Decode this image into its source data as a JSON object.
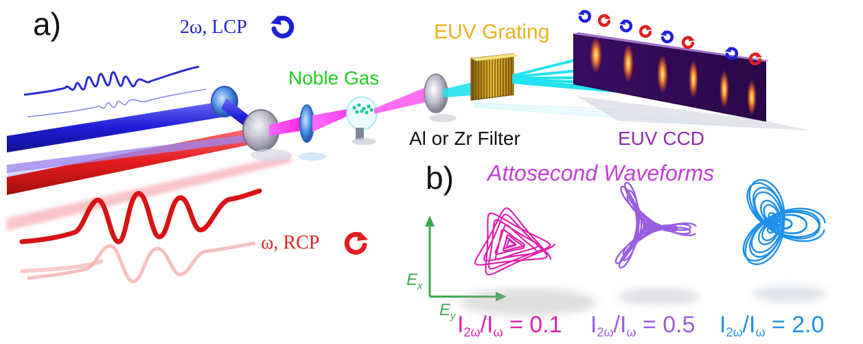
{
  "panel_a": {
    "label": "a)",
    "blue_beam_label": "2ω, LCP",
    "red_beam_label": "ω, RCP",
    "gas_label": "Noble Gas",
    "grating_label": "EUV Grating",
    "filter_label": "Al or Zr Filter",
    "ccd_label": "EUV CCD",
    "handedness_icons": [
      "blue",
      "red",
      "blue",
      "red",
      "blue",
      "red",
      "blue",
      "red"
    ]
  },
  "panel_b": {
    "label": "b)",
    "title": "Attosecond Waveforms",
    "axis_x": "E",
    "axis_x_sub": "x",
    "axis_y": "E",
    "axis_y_sub": "y",
    "waveforms": [
      {
        "ratio_num": "I",
        "ratio_num_sub": "2ω",
        "ratio_den": "/I",
        "ratio_den_sub": "ω",
        "ratio_value": " = 0.1",
        "color": "#e020b0",
        "ratio": 0.1
      },
      {
        "ratio_num": "I",
        "ratio_num_sub": "2ω",
        "ratio_den": "/I",
        "ratio_den_sub": "ω",
        "ratio_value": " = 0.5",
        "color": "#9a5de0",
        "ratio": 0.5
      },
      {
        "ratio_num": "I",
        "ratio_num_sub": "2ω",
        "ratio_den": "/I",
        "ratio_den_sub": "ω",
        "ratio_value": " = 2.0",
        "color": "#1e90ea",
        "ratio": 2.0
      }
    ]
  },
  "colors": {
    "blue": "#2020d8",
    "red": "#e21f1f",
    "magenta": "#ff44ff",
    "cyan": "#1fe0f0",
    "green_gas": "#22cc22",
    "grating": "#e7b11d",
    "ccd": "#8a2fb5",
    "axis_green": "#3aa64a"
  }
}
